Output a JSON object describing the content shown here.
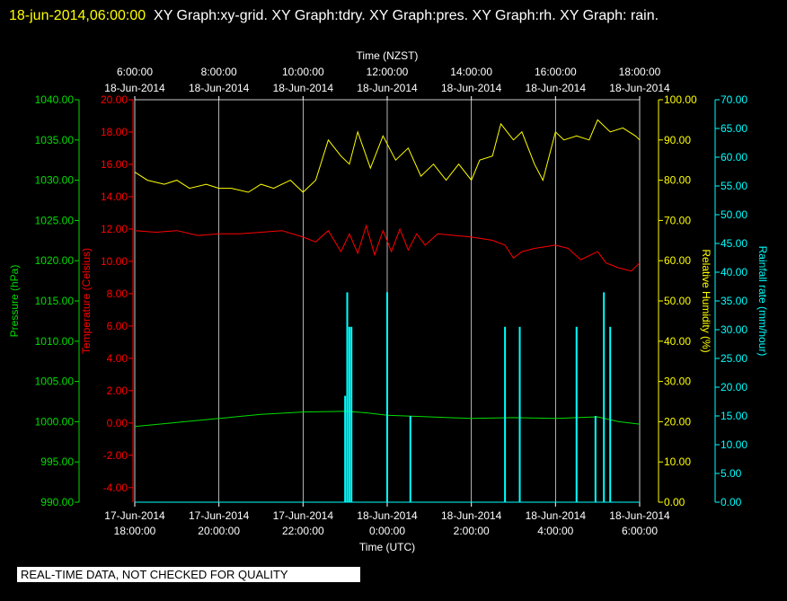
{
  "header": {
    "timestamp": "18-jun-2014,06:00:00",
    "titles": "XY Graph:xy-grid.  XY Graph:tdry.  XY Graph:pres.  XY Graph:rh.  XY Graph: rain."
  },
  "disclaimer": "REAL-TIME DATA, NOT CHECKED FOR QUALITY",
  "colors": {
    "background": "#000000",
    "grid": "#ffffff",
    "pressure": "#00dd00",
    "temperature": "#ff0000",
    "humidity": "#ffff00",
    "rain": "#00ffff",
    "header_timestamp": "#ffff00"
  },
  "chart_data": {
    "type": "line",
    "grid": true,
    "x_top": {
      "title": "Time (NZST)",
      "ticks": [
        {
          "time": "6:00:00",
          "date": "18-Jun-2014"
        },
        {
          "time": "8:00:00",
          "date": "18-Jun-2014"
        },
        {
          "time": "10:00:00",
          "date": "18-Jun-2014"
        },
        {
          "time": "12:00:00",
          "date": "18-Jun-2014"
        },
        {
          "time": "14:00:00",
          "date": "18-Jun-2014"
        },
        {
          "time": "16:00:00",
          "date": "18-Jun-2014"
        },
        {
          "time": "18:00:00",
          "date": "18-Jun-2014"
        }
      ]
    },
    "x_bottom": {
      "title": "Time (UTC)",
      "ticks": [
        {
          "date": "17-Jun-2014",
          "time": "18:00:00"
        },
        {
          "date": "17-Jun-2014",
          "time": "20:00:00"
        },
        {
          "date": "17-Jun-2014",
          "time": "22:00:00"
        },
        {
          "date": "18-Jun-2014",
          "time": "0:00:00"
        },
        {
          "date": "18-Jun-2014",
          "time": "2:00:00"
        },
        {
          "date": "18-Jun-2014",
          "time": "4:00:00"
        },
        {
          "date": "18-Jun-2014",
          "time": "6:00:00"
        }
      ]
    },
    "x_range_hours": [
      0,
      12
    ],
    "axes": {
      "pressure": {
        "label": "Pressure (hPa)",
        "range": [
          990,
          1040
        ],
        "ticks": [
          "990.00",
          "995.00",
          "1000.00",
          "1005.00",
          "1010.00",
          "1015.00",
          "1020.00",
          "1025.00",
          "1030.00",
          "1035.00",
          "1040.00"
        ]
      },
      "temperature": {
        "label": "Temperature (Celsius)",
        "range": [
          -4.9,
          20
        ],
        "ticks": [
          "-4.00",
          "-2.00",
          "0.00",
          "2.00",
          "4.00",
          "6.00",
          "8.00",
          "10.00",
          "12.00",
          "14.00",
          "16.00",
          "18.00",
          "20.00"
        ]
      },
      "humidity": {
        "label": "Relative Humidity (%)",
        "range": [
          0,
          100
        ],
        "ticks": [
          "0.00",
          "10.00",
          "20.00",
          "30.00",
          "40.00",
          "50.00",
          "60.00",
          "70.00",
          "80.00",
          "90.00",
          "100.00"
        ]
      },
      "rain": {
        "label": "Rainfall rate (mm/hour)",
        "range": [
          0,
          70
        ],
        "ticks": [
          "0.00",
          "5.00",
          "10.00",
          "15.00",
          "20.00",
          "25.00",
          "30.00",
          "35.00",
          "40.00",
          "45.00",
          "50.00",
          "55.00",
          "60.00",
          "65.00",
          "70.00"
        ]
      }
    },
    "series": [
      {
        "name": "pres",
        "axis": "pressure",
        "x": [
          0,
          1,
          2,
          3,
          4,
          5,
          5.5,
          6,
          7,
          8,
          9,
          10,
          11,
          11.5,
          12
        ],
        "y": [
          999.4,
          999.9,
          1000.4,
          1000.9,
          1001.2,
          1001.3,
          1001.1,
          1000.8,
          1000.6,
          1000.4,
          1000.5,
          1000.4,
          1000.6,
          1000.0,
          999.7
        ]
      },
      {
        "name": "tdry",
        "axis": "temperature",
        "x": [
          0,
          0.5,
          1,
          1.5,
          2,
          2.5,
          3,
          3.5,
          4,
          4.3,
          4.6,
          4.9,
          5.1,
          5.3,
          5.5,
          5.7,
          5.9,
          6.1,
          6.3,
          6.5,
          6.7,
          6.9,
          7.2,
          7.6,
          8,
          8.5,
          8.8,
          9,
          9.2,
          9.5,
          10,
          10.3,
          10.6,
          11,
          11.2,
          11.5,
          11.8,
          12
        ],
        "y": [
          11.9,
          11.8,
          11.9,
          11.6,
          11.7,
          11.7,
          11.8,
          11.9,
          11.5,
          11.2,
          11.9,
          10.6,
          11.7,
          10.5,
          12.2,
          10.4,
          11.9,
          10.6,
          12.0,
          10.7,
          11.7,
          11.0,
          11.7,
          11.6,
          11.5,
          11.3,
          11.0,
          10.2,
          10.6,
          10.8,
          11.0,
          10.8,
          10.1,
          10.6,
          9.9,
          9.6,
          9.4,
          9.9
        ]
      },
      {
        "name": "rh",
        "axis": "humidity",
        "x": [
          0,
          0.3,
          0.7,
          1,
          1.3,
          1.7,
          2,
          2.3,
          2.7,
          3,
          3.3,
          3.7,
          4,
          4.3,
          4.6,
          4.9,
          5.1,
          5.3,
          5.6,
          5.9,
          6.2,
          6.5,
          6.8,
          7.1,
          7.4,
          7.7,
          8,
          8.2,
          8.5,
          8.7,
          9,
          9.2,
          9.5,
          9.7,
          10,
          10.2,
          10.5,
          10.8,
          11,
          11.3,
          11.6,
          11.9,
          12
        ],
        "y": [
          82,
          80,
          79,
          80,
          78,
          79,
          78,
          78,
          77,
          79,
          78,
          80,
          77,
          80,
          90,
          86,
          84,
          92,
          83,
          91,
          85,
          88,
          81,
          84,
          80,
          84,
          80,
          85,
          86,
          94,
          90,
          92,
          84,
          80,
          92,
          90,
          91,
          90,
          95,
          92,
          93,
          91,
          90
        ]
      },
      {
        "name": "rain",
        "axis": "rain",
        "type": "bar",
        "x": [
          5.0,
          5.05,
          5.1,
          5.15,
          6.0,
          6.55,
          8.8,
          9.15,
          10.5,
          10.95,
          11.15,
          11.3
        ],
        "y": [
          18.5,
          36.5,
          30.5,
          30.5,
          36.5,
          15.0,
          30.5,
          30.5,
          30.5,
          15.0,
          36.5,
          30.5
        ]
      }
    ]
  }
}
